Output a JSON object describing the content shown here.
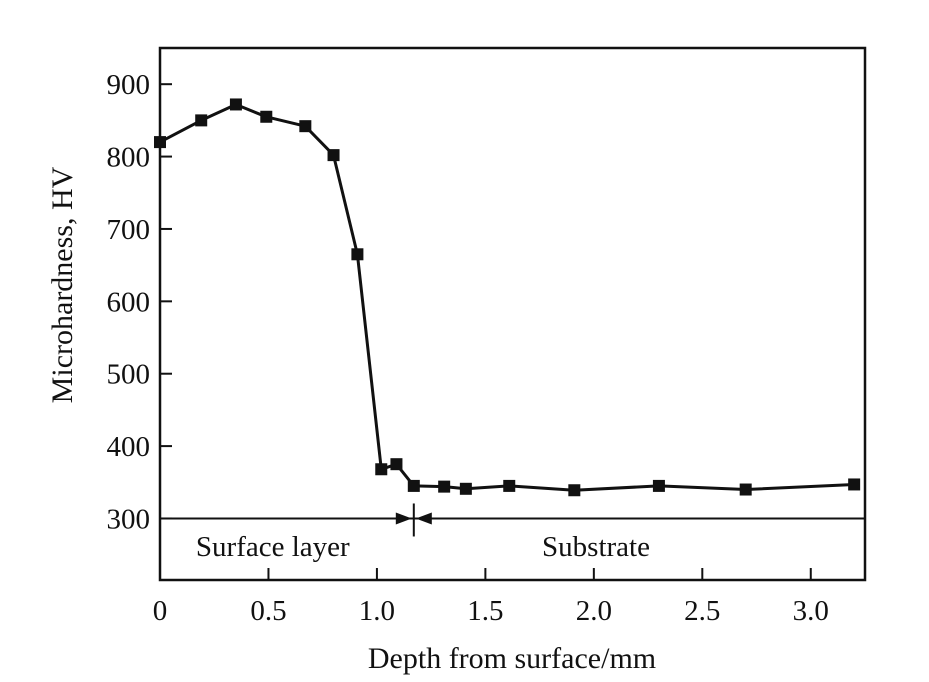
{
  "chart_data": {
    "type": "line",
    "title": "",
    "xlabel": "Depth from surface/mm",
    "ylabel": "Microhardness, HV",
    "xlim": [
      0,
      3.25
    ],
    "ylim": [
      215,
      950
    ],
    "xticks": [
      0,
      0.5,
      1.0,
      1.5,
      2.0,
      2.5,
      3.0
    ],
    "xtick_labels": [
      "0",
      "0.5",
      "1.0",
      "1.5",
      "2.0",
      "2.5",
      "3.0"
    ],
    "yticks": [
      300,
      400,
      500,
      600,
      700,
      800,
      900
    ],
    "ytick_labels": [
      "300",
      "400",
      "500",
      "600",
      "700",
      "800",
      "900"
    ],
    "grid": false,
    "series": [
      {
        "marker": "square",
        "color": "#111111",
        "x": [
          0.0,
          0.19,
          0.35,
          0.49,
          0.67,
          0.8,
          0.91,
          1.02,
          1.09,
          1.17,
          1.31,
          1.41,
          1.61,
          1.91,
          2.3,
          2.7,
          3.2
        ],
        "y": [
          820,
          850,
          872,
          855,
          842,
          802,
          665,
          368,
          375,
          345,
          344,
          341,
          345,
          339,
          345,
          340,
          347
        ]
      }
    ],
    "boundary": {
      "y": 300,
      "x": 1.17
    },
    "regions": [
      {
        "label": "Surface layer",
        "x": 0.52
      },
      {
        "label": "Substrate",
        "x": 2.01
      }
    ]
  }
}
